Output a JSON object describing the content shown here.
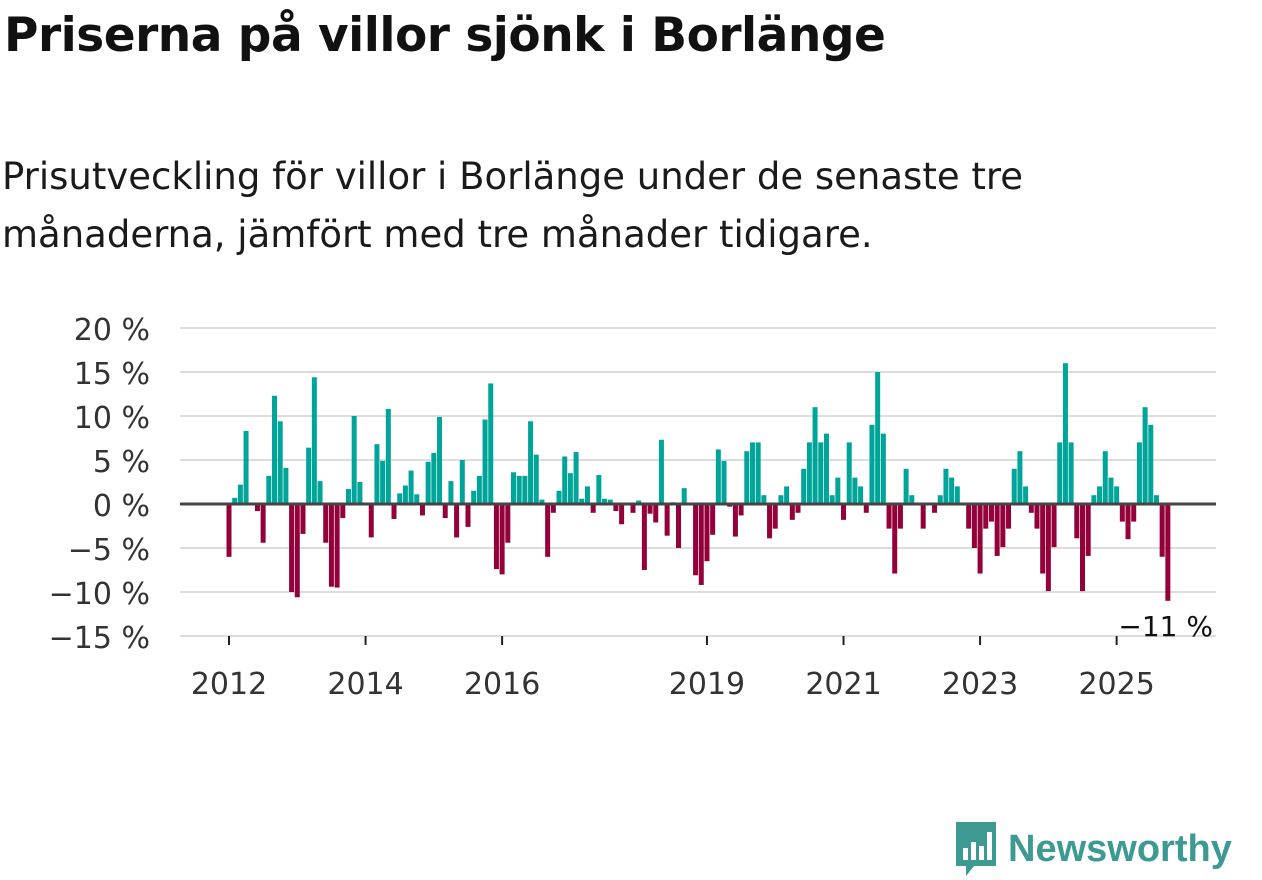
{
  "title": "Priserna på villor sjönk i Borlänge",
  "subtitle": "Prisutveckling för villor i Borlänge under de senaste tre månaderna, jämfört med tre månader tidigare.",
  "brand": "Newsworthy",
  "colors": {
    "positive": "#00a59a",
    "negative": "#94003a",
    "grid": "#dddddd",
    "zero": "#444444",
    "brand": "#3d9a93"
  },
  "chart_data": {
    "type": "bar",
    "title": "Priserna på villor sjönk i Borlänge",
    "xlabel": "",
    "ylabel": "",
    "start_month": "2012-01",
    "frequency": "monthly",
    "ylim": [
      -15,
      20
    ],
    "yticks": [
      20,
      15,
      10,
      5,
      0,
      -5,
      -10,
      -15
    ],
    "ytick_labels": [
      "20 %",
      "15 %",
      "10 %",
      "5 %",
      "0 %",
      "−5 %",
      "−10 %",
      "−15 %"
    ],
    "xticks": [
      {
        "year": 2012,
        "label": "2012"
      },
      {
        "year": 2014,
        "label": "2014"
      },
      {
        "year": 2016,
        "label": "2016"
      },
      {
        "year": 2019,
        "label": "2019"
      },
      {
        "year": 2021,
        "label": "2021"
      },
      {
        "year": 2023,
        "label": "2023"
      },
      {
        "year": 2025,
        "label": "2025"
      }
    ],
    "annotation": "−11 %",
    "grid": true,
    "values": [
      -6,
      0.7,
      2.2,
      8.3,
      0,
      -0.8,
      -4.4,
      3.2,
      12.3,
      9.4,
      4.1,
      -10,
      -10.6,
      -3.4,
      6.4,
      14.4,
      2.6,
      -4.4,
      -9.4,
      -9.5,
      -1.6,
      1.7,
      10,
      2.5,
      0,
      -3.8,
      6.8,
      4.9,
      10.8,
      -1.7,
      1.2,
      2.1,
      3.8,
      1.1,
      -1.3,
      4.8,
      5.8,
      9.9,
      -1.6,
      2.6,
      -3.8,
      5,
      -2.6,
      1.5,
      3.2,
      9.6,
      13.7,
      -7.4,
      -8,
      -4.4,
      3.6,
      3.2,
      3.2,
      9.4,
      5.6,
      0.5,
      -6,
      -1,
      1.5,
      5.4,
      3.5,
      5.9,
      0.6,
      2,
      -1,
      3.3,
      0.6,
      0.5,
      -0.8,
      -2.3,
      0,
      -1,
      0.4,
      -7.5,
      -1.1,
      -2.1,
      7.3,
      -3.6,
      0.2,
      -5,
      1.8,
      0,
      -8.1,
      -9.2,
      -6.5,
      -3.5,
      6.2,
      4.9,
      -0.3,
      -3.7,
      -1.3,
      6,
      7,
      7,
      1,
      -3.9,
      -2.8,
      1,
      2,
      -1.8,
      -1,
      4,
      7,
      11,
      7,
      8,
      1,
      3,
      -1.8,
      7,
      3,
      2,
      -1,
      9,
      15,
      8,
      -2.8,
      -7.9,
      -2.8,
      4,
      1,
      0,
      -2.8,
      0,
      -1,
      1,
      4,
      3,
      2,
      0,
      -2.8,
      -5,
      -7.9,
      -2.8,
      -2,
      -5.9,
      -4.9,
      -2.8,
      4,
      6,
      2,
      -1,
      -2.8,
      -7.9,
      -9.9,
      -4.9,
      7,
      16,
      7,
      -3.9,
      -9.9,
      -5.9,
      1,
      2,
      6,
      3,
      2,
      -2,
      -4,
      -2,
      7,
      11,
      9,
      1,
      -6,
      -11
    ]
  }
}
